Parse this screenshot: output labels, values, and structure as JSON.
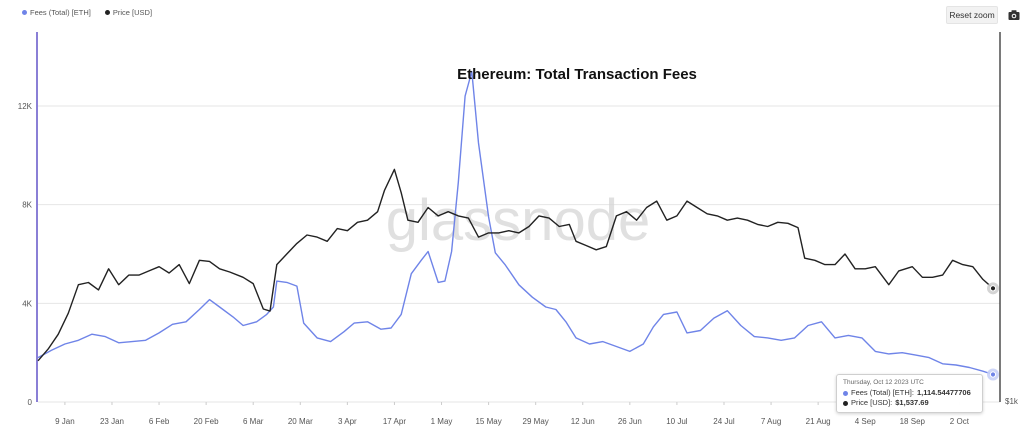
{
  "legend": [
    {
      "label": "Fees (Total) [ETH]",
      "color": "#6f84e8"
    },
    {
      "label": "Price [USD]",
      "color": "#222222"
    }
  ],
  "toolbar": {
    "reset_zoom_label": "Reset zoom",
    "camera_icon": "camera-icon"
  },
  "watermark": "glassnode",
  "tooltip": {
    "date": "Thursday, Oct 12 2023 UTC",
    "fees_label": "Fees (Total) [ETH]:",
    "fees_value": "1,114.54477706",
    "price_label": "Price [USD]:",
    "price_value": "$1,537.69"
  },
  "chart_data": {
    "type": "line",
    "title": "Ethereum: Total Transaction Fees",
    "x_tick_labels": [
      "9 Jan",
      "23 Jan",
      "6 Feb",
      "20 Feb",
      "6 Mar",
      "20 Mar",
      "3 Apr",
      "17 Apr",
      "1 May",
      "15 May",
      "29 May",
      "12 Jun",
      "26 Jun",
      "10 Jul",
      "24 Jul",
      "7 Aug",
      "21 Aug",
      "4 Sep",
      "18 Sep",
      "2 Oct"
    ],
    "x_tick_dates": [
      "2023-01-09",
      "2023-01-23",
      "2023-02-06",
      "2023-02-20",
      "2023-03-06",
      "2023-03-20",
      "2023-04-03",
      "2023-04-17",
      "2023-05-01",
      "2023-05-15",
      "2023-05-29",
      "2023-06-12",
      "2023-06-26",
      "2023-07-10",
      "2023-07-24",
      "2023-08-07",
      "2023-08-21",
      "2023-09-04",
      "2023-09-18",
      "2023-10-02"
    ],
    "xlim": [
      "2023-01-01",
      "2023-10-12"
    ],
    "y_left": {
      "ticks": [
        0,
        4000,
        8000,
        12000
      ],
      "tick_labels": [
        "0",
        "4K",
        "8K",
        "12K"
      ],
      "ylim": [
        0,
        15000
      ]
    },
    "y_right": {
      "visible_tick_label": "$1k",
      "visible_tick_value": 1000,
      "ylim": [
        1000,
        2750
      ]
    },
    "grid": "horizontal",
    "legend_position": "top-left",
    "series": [
      {
        "name": "Fees (Total) [ETH]",
        "axis": "left",
        "color": "#6f84e8",
        "points": [
          [
            "2023-01-01",
            1800
          ],
          [
            "2023-01-05",
            2100
          ],
          [
            "2023-01-09",
            2350
          ],
          [
            "2023-01-13",
            2500
          ],
          [
            "2023-01-17",
            2750
          ],
          [
            "2023-01-21",
            2650
          ],
          [
            "2023-01-25",
            2400
          ],
          [
            "2023-01-29",
            2450
          ],
          [
            "2023-02-02",
            2500
          ],
          [
            "2023-02-06",
            2800
          ],
          [
            "2023-02-10",
            3150
          ],
          [
            "2023-02-14",
            3250
          ],
          [
            "2023-02-18",
            3750
          ],
          [
            "2023-02-21",
            4150
          ],
          [
            "2023-02-24",
            3850
          ],
          [
            "2023-02-28",
            3450
          ],
          [
            "2023-03-03",
            3100
          ],
          [
            "2023-03-07",
            3250
          ],
          [
            "2023-03-10",
            3550
          ],
          [
            "2023-03-12",
            3850
          ],
          [
            "2023-03-13",
            4900
          ],
          [
            "2023-03-16",
            4850
          ],
          [
            "2023-03-19",
            4700
          ],
          [
            "2023-03-21",
            3200
          ],
          [
            "2023-03-25",
            2600
          ],
          [
            "2023-03-29",
            2450
          ],
          [
            "2023-04-02",
            2850
          ],
          [
            "2023-04-05",
            3200
          ],
          [
            "2023-04-09",
            3250
          ],
          [
            "2023-04-13",
            2950
          ],
          [
            "2023-04-16",
            3000
          ],
          [
            "2023-04-19",
            3550
          ],
          [
            "2023-04-22",
            5200
          ],
          [
            "2023-04-25",
            5750
          ],
          [
            "2023-04-27",
            6100
          ],
          [
            "2023-04-30",
            4850
          ],
          [
            "2023-05-02",
            4900
          ],
          [
            "2023-05-04",
            6100
          ],
          [
            "2023-05-06",
            8900
          ],
          [
            "2023-05-08",
            12400
          ],
          [
            "2023-05-10",
            13400
          ],
          [
            "2023-05-12",
            10500
          ],
          [
            "2023-05-15",
            7500
          ],
          [
            "2023-05-17",
            6050
          ],
          [
            "2023-05-20",
            5550
          ],
          [
            "2023-05-24",
            4750
          ],
          [
            "2023-05-28",
            4250
          ],
          [
            "2023-06-01",
            3850
          ],
          [
            "2023-06-04",
            3750
          ],
          [
            "2023-06-07",
            3250
          ],
          [
            "2023-06-10",
            2600
          ],
          [
            "2023-06-14",
            2350
          ],
          [
            "2023-06-18",
            2450
          ],
          [
            "2023-06-22",
            2250
          ],
          [
            "2023-06-26",
            2050
          ],
          [
            "2023-06-30",
            2350
          ],
          [
            "2023-07-03",
            3050
          ],
          [
            "2023-07-06",
            3550
          ],
          [
            "2023-07-10",
            3650
          ],
          [
            "2023-07-13",
            2800
          ],
          [
            "2023-07-17",
            2900
          ],
          [
            "2023-07-21",
            3400
          ],
          [
            "2023-07-25",
            3700
          ],
          [
            "2023-07-29",
            3100
          ],
          [
            "2023-08-02",
            2650
          ],
          [
            "2023-08-06",
            2600
          ],
          [
            "2023-08-10",
            2500
          ],
          [
            "2023-08-14",
            2600
          ],
          [
            "2023-08-18",
            3100
          ],
          [
            "2023-08-22",
            3250
          ],
          [
            "2023-08-26",
            2600
          ],
          [
            "2023-08-30",
            2700
          ],
          [
            "2023-09-03",
            2600
          ],
          [
            "2023-09-07",
            2050
          ],
          [
            "2023-09-11",
            1950
          ],
          [
            "2023-09-15",
            2000
          ],
          [
            "2023-09-19",
            1900
          ],
          [
            "2023-09-23",
            1800
          ],
          [
            "2023-09-27",
            1550
          ],
          [
            "2023-10-01",
            1500
          ],
          [
            "2023-10-05",
            1400
          ],
          [
            "2023-10-09",
            1250
          ],
          [
            "2023-10-12",
            1114.54477706
          ]
        ]
      },
      {
        "name": "Price [USD]",
        "axis": "right",
        "color": "#222222",
        "points": [
          [
            "2023-01-01",
            1195
          ],
          [
            "2023-01-04",
            1250
          ],
          [
            "2023-01-07",
            1320
          ],
          [
            "2023-01-10",
            1420
          ],
          [
            "2023-01-13",
            1555
          ],
          [
            "2023-01-16",
            1565
          ],
          [
            "2023-01-19",
            1530
          ],
          [
            "2023-01-22",
            1630
          ],
          [
            "2023-01-25",
            1555
          ],
          [
            "2023-01-28",
            1600
          ],
          [
            "2023-01-31",
            1600
          ],
          [
            "2023-02-03",
            1620
          ],
          [
            "2023-02-06",
            1640
          ],
          [
            "2023-02-09",
            1610
          ],
          [
            "2023-02-12",
            1650
          ],
          [
            "2023-02-15",
            1560
          ],
          [
            "2023-02-18",
            1670
          ],
          [
            "2023-02-21",
            1665
          ],
          [
            "2023-02-24",
            1630
          ],
          [
            "2023-02-27",
            1615
          ],
          [
            "2023-03-03",
            1590
          ],
          [
            "2023-03-06",
            1560
          ],
          [
            "2023-03-09",
            1440
          ],
          [
            "2023-03-11",
            1430
          ],
          [
            "2023-03-13",
            1650
          ],
          [
            "2023-03-16",
            1700
          ],
          [
            "2023-03-19",
            1750
          ],
          [
            "2023-03-22",
            1790
          ],
          [
            "2023-03-25",
            1780
          ],
          [
            "2023-03-28",
            1760
          ],
          [
            "2023-03-31",
            1820
          ],
          [
            "2023-04-03",
            1810
          ],
          [
            "2023-04-06",
            1850
          ],
          [
            "2023-04-09",
            1860
          ],
          [
            "2023-04-12",
            1900
          ],
          [
            "2023-04-14",
            2000
          ],
          [
            "2023-04-17",
            2100
          ],
          [
            "2023-04-19",
            1990
          ],
          [
            "2023-04-21",
            1860
          ],
          [
            "2023-04-24",
            1850
          ],
          [
            "2023-04-27",
            1920
          ],
          [
            "2023-04-30",
            1880
          ],
          [
            "2023-05-03",
            1900
          ],
          [
            "2023-05-06",
            1880
          ],
          [
            "2023-05-09",
            1870
          ],
          [
            "2023-05-12",
            1780
          ],
          [
            "2023-05-15",
            1800
          ],
          [
            "2023-05-18",
            1800
          ],
          [
            "2023-05-21",
            1810
          ],
          [
            "2023-05-24",
            1800
          ],
          [
            "2023-05-27",
            1830
          ],
          [
            "2023-05-30",
            1880
          ],
          [
            "2023-06-02",
            1870
          ],
          [
            "2023-06-05",
            1830
          ],
          [
            "2023-06-08",
            1840
          ],
          [
            "2023-06-10",
            1760
          ],
          [
            "2023-06-13",
            1740
          ],
          [
            "2023-06-16",
            1720
          ],
          [
            "2023-06-19",
            1735
          ],
          [
            "2023-06-22",
            1880
          ],
          [
            "2023-06-25",
            1900
          ],
          [
            "2023-06-28",
            1860
          ],
          [
            "2023-07-01",
            1920
          ],
          [
            "2023-07-04",
            1950
          ],
          [
            "2023-07-07",
            1860
          ],
          [
            "2023-07-10",
            1880
          ],
          [
            "2023-07-13",
            1950
          ],
          [
            "2023-07-16",
            1920
          ],
          [
            "2023-07-19",
            1890
          ],
          [
            "2023-07-22",
            1880
          ],
          [
            "2023-07-25",
            1860
          ],
          [
            "2023-07-28",
            1870
          ],
          [
            "2023-07-31",
            1860
          ],
          [
            "2023-08-03",
            1840
          ],
          [
            "2023-08-06",
            1830
          ],
          [
            "2023-08-09",
            1850
          ],
          [
            "2023-08-12",
            1845
          ],
          [
            "2023-08-15",
            1825
          ],
          [
            "2023-08-17",
            1680
          ],
          [
            "2023-08-20",
            1670
          ],
          [
            "2023-08-23",
            1650
          ],
          [
            "2023-08-26",
            1650
          ],
          [
            "2023-08-29",
            1700
          ],
          [
            "2023-09-01",
            1630
          ],
          [
            "2023-09-04",
            1630
          ],
          [
            "2023-09-07",
            1640
          ],
          [
            "2023-09-11",
            1555
          ],
          [
            "2023-09-14",
            1620
          ],
          [
            "2023-09-18",
            1640
          ],
          [
            "2023-09-21",
            1590
          ],
          [
            "2023-09-24",
            1590
          ],
          [
            "2023-09-27",
            1600
          ],
          [
            "2023-09-30",
            1670
          ],
          [
            "2023-10-03",
            1650
          ],
          [
            "2023-10-06",
            1640
          ],
          [
            "2023-10-09",
            1580
          ],
          [
            "2023-10-12",
            1537.69
          ]
        ]
      }
    ]
  }
}
